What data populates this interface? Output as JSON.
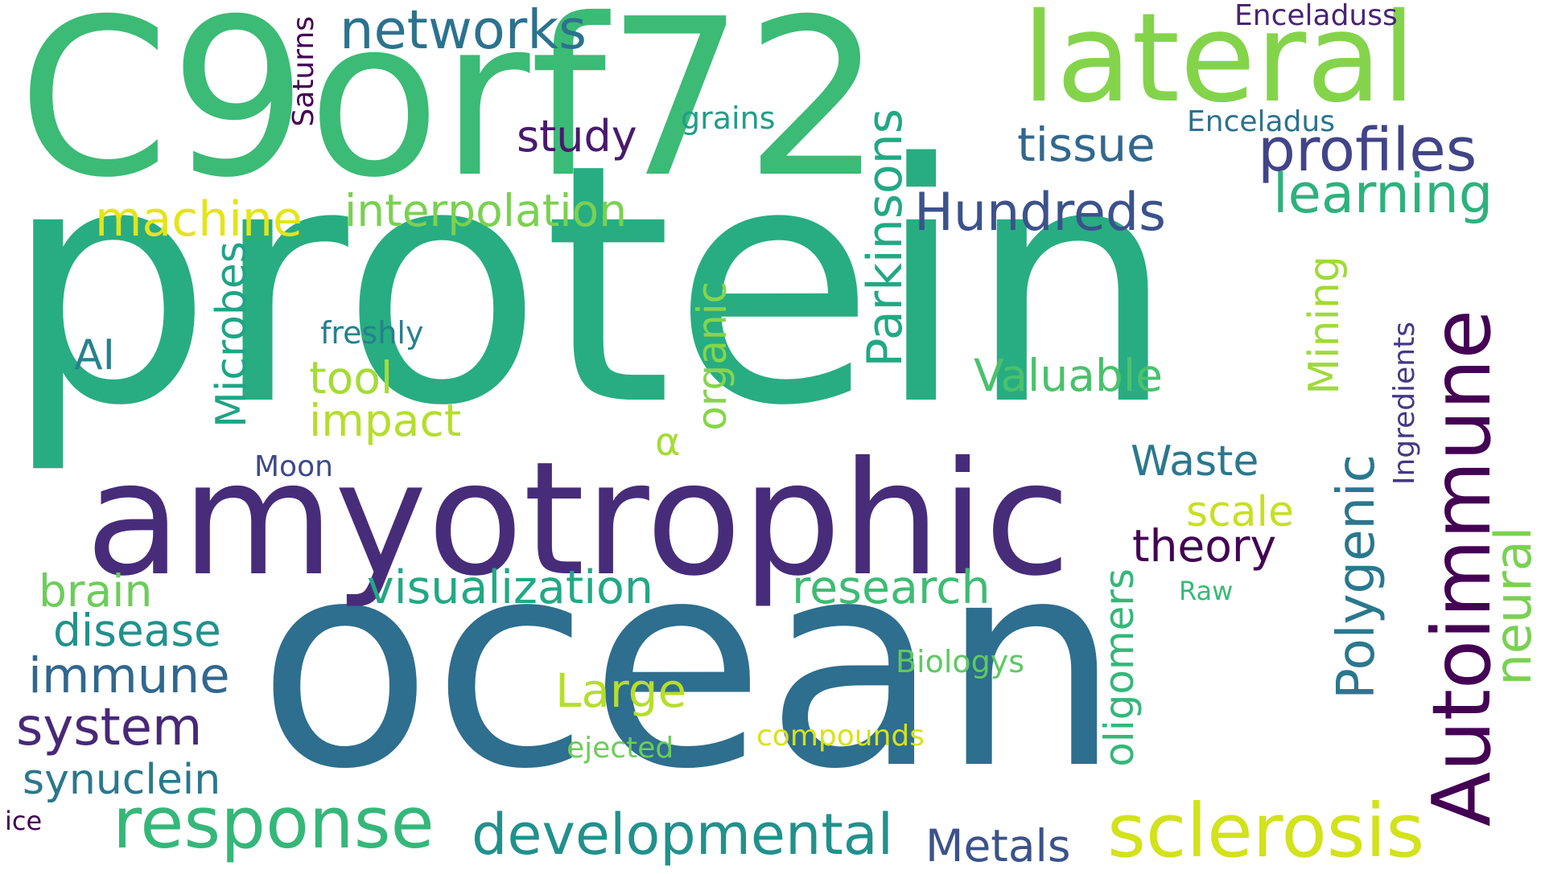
{
  "words": [
    {
      "key": "protein",
      "text": "protein",
      "color": "#27ad81"
    },
    {
      "key": "ocean",
      "text": "ocean",
      "color": "#2e6e8e"
    },
    {
      "key": "c9orf72",
      "text": "C9orf72",
      "color": "#3bbb75"
    },
    {
      "key": "amyotrophic",
      "text": "amyotrophic",
      "color": "#472c7a"
    },
    {
      "key": "lateral",
      "text": "lateral",
      "color": "#84d44b"
    },
    {
      "key": "sclerosis",
      "text": "sclerosis",
      "color": "#d2e21b"
    },
    {
      "key": "autoimmune",
      "text": "Autoimmune",
      "color": "#440154"
    },
    {
      "key": "response",
      "text": "response",
      "color": "#35b779"
    },
    {
      "key": "developmental",
      "text": "developmental",
      "color": "#21918c"
    },
    {
      "key": "networks",
      "text": "networks",
      "color": "#2c728e"
    },
    {
      "key": "profiles",
      "text": "profiles",
      "color": "#414487"
    },
    {
      "key": "learning",
      "text": "learning",
      "color": "#2db27d"
    },
    {
      "key": "hundreds",
      "text": "Hundreds",
      "color": "#3b528b"
    },
    {
      "key": "tissue",
      "text": "tissue",
      "color": "#31688e"
    },
    {
      "key": "study",
      "text": "study",
      "color": "#481a6c"
    },
    {
      "key": "machine",
      "text": "machine",
      "color": "#e5e419"
    },
    {
      "key": "interpolation",
      "text": "interpolation",
      "color": "#7ad151"
    },
    {
      "key": "visualization",
      "text": "visualization",
      "color": "#22a884"
    },
    {
      "key": "research",
      "text": "research",
      "color": "#3dbc74"
    },
    {
      "key": "polygenic",
      "text": "Polygenic",
      "color": "#2a788e"
    },
    {
      "key": "neural",
      "text": "neural",
      "color": "#7ad151"
    },
    {
      "key": "parkinsons",
      "text": "Parkinsons",
      "color": "#22a884"
    },
    {
      "key": "mining",
      "text": "Mining",
      "color": "#a0da39"
    },
    {
      "key": "oligomers",
      "text": "oligomers",
      "color": "#35b779"
    },
    {
      "key": "organic",
      "text": "organic",
      "color": "#86d549"
    },
    {
      "key": "microbes",
      "text": "Microbes",
      "color": "#20a486"
    },
    {
      "key": "ingredients",
      "text": "Ingredients",
      "color": "#443983"
    },
    {
      "key": "saturns",
      "text": "Saturns",
      "color": "#440154"
    },
    {
      "key": "enceladuss",
      "text": "Enceladuss",
      "color": "#482475"
    },
    {
      "key": "enceladus",
      "text": "Enceladus",
      "color": "#2c728e"
    },
    {
      "key": "grains",
      "text": "grains",
      "color": "#1f9e89"
    },
    {
      "key": "freshly",
      "text": "freshly",
      "color": "#277f8e"
    },
    {
      "key": "ai",
      "text": "AI",
      "color": "#26828e"
    },
    {
      "key": "tool",
      "text": "tool",
      "color": "#a5db36"
    },
    {
      "key": "impact",
      "text": "impact",
      "color": "#b5de2b"
    },
    {
      "key": "alpha",
      "text": "α",
      "color": "#a5db36"
    },
    {
      "key": "moon",
      "text": "Moon",
      "color": "#3e4a89"
    },
    {
      "key": "valuable",
      "text": "Valuable",
      "color": "#4ac16d"
    },
    {
      "key": "waste",
      "text": "Waste",
      "color": "#2a788e"
    },
    {
      "key": "scale",
      "text": "scale",
      "color": "#c8e020"
    },
    {
      "key": "theory",
      "text": "theory",
      "color": "#440154"
    },
    {
      "key": "raw",
      "text": "Raw",
      "color": "#38b977"
    },
    {
      "key": "brain",
      "text": "brain",
      "color": "#6ccd5a"
    },
    {
      "key": "disease",
      "text": "disease",
      "color": "#21918c"
    },
    {
      "key": "immune",
      "text": "immune",
      "color": "#31688e"
    },
    {
      "key": "system",
      "text": "system",
      "color": "#482878"
    },
    {
      "key": "synuclein",
      "text": "synuclein",
      "color": "#2a788e"
    },
    {
      "key": "ice",
      "text": "ice",
      "color": "#440154"
    },
    {
      "key": "large",
      "text": "Large",
      "color": "#b5de2b"
    },
    {
      "key": "ejected",
      "text": "ejected",
      "color": "#6ccd5a"
    },
    {
      "key": "compounds",
      "text": "compounds",
      "color": "#d8e219"
    },
    {
      "key": "biologys",
      "text": "Biologys",
      "color": "#5ec962"
    },
    {
      "key": "metals",
      "text": "Metals",
      "color": "#3b528b"
    }
  ]
}
